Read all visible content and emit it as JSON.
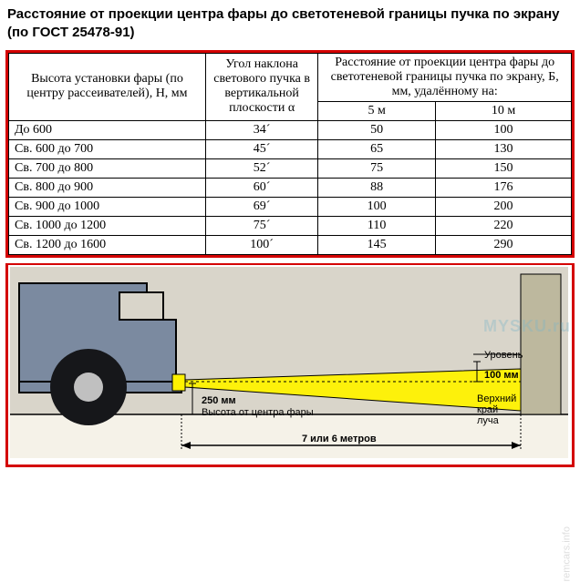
{
  "title": "Расстояние от проекции центра фары до светотеневой границы пучка по экрану (по ГОСТ 25478-91)",
  "title_fontsize": 15,
  "table": {
    "border_color": "#d40000",
    "header_fontsize": 14,
    "cell_fontsize": 14,
    "columns": {
      "col1": "Высота установки фары (по центру рассеивателей), Н, мм",
      "col2": "Угол наклона светового пучка в вертикальной плоскости α",
      "col3_top": "Расстояние от проекции центра фары до светотеневой границы пучка по экрану, Б, мм, удалённому на:",
      "col3a": "5 м",
      "col3b": "10 м"
    },
    "rows": [
      {
        "h": "До 600",
        "angle": "34´",
        "d5": "50",
        "d10": "100"
      },
      {
        "h": "Св. 600 до 700",
        "angle": "45´",
        "d5": "65",
        "d10": "130"
      },
      {
        "h": "Св. 700 до 800",
        "angle": "52´",
        "d5": "75",
        "d10": "150"
      },
      {
        "h": "Св. 800 до 900",
        "angle": "60´",
        "d5": "88",
        "d10": "176"
      },
      {
        "h": "Св. 900 до 1000",
        "angle": "69´",
        "d5": "100",
        "d10": "200"
      },
      {
        "h": "Св. 1000 до 1200",
        "angle": "75´",
        "d5": "110",
        "d10": "220"
      },
      {
        "h": "Св. 1200 до 1600",
        "angle": "100´",
        "d5": "145",
        "d10": "290"
      }
    ],
    "col_widths": [
      "35%",
      "20%",
      "22.5%",
      "22.5%"
    ]
  },
  "diagram": {
    "border_color": "#d40000",
    "background": "#d9d5ca",
    "truck_color": "#7b8aa0",
    "wheel_color": "#16171a",
    "hub_color": "#c0c0c0",
    "beam_color": "#fff200",
    "line_color": "#000000",
    "ground_color": "#f5f2e8",
    "wall_color": "#bdb89e",
    "labels": {
      "level": "Уровень",
      "d100": "100 мм",
      "h250": "250 мм",
      "h250_sub": "Высота от центра фары",
      "dist": "7 или 6 метров",
      "upper_edge": "Верхний край луча"
    },
    "label_fontsize": 11
  },
  "watermarks": {
    "w1": "MYSKU.ru",
    "w2": "remcars.info"
  }
}
